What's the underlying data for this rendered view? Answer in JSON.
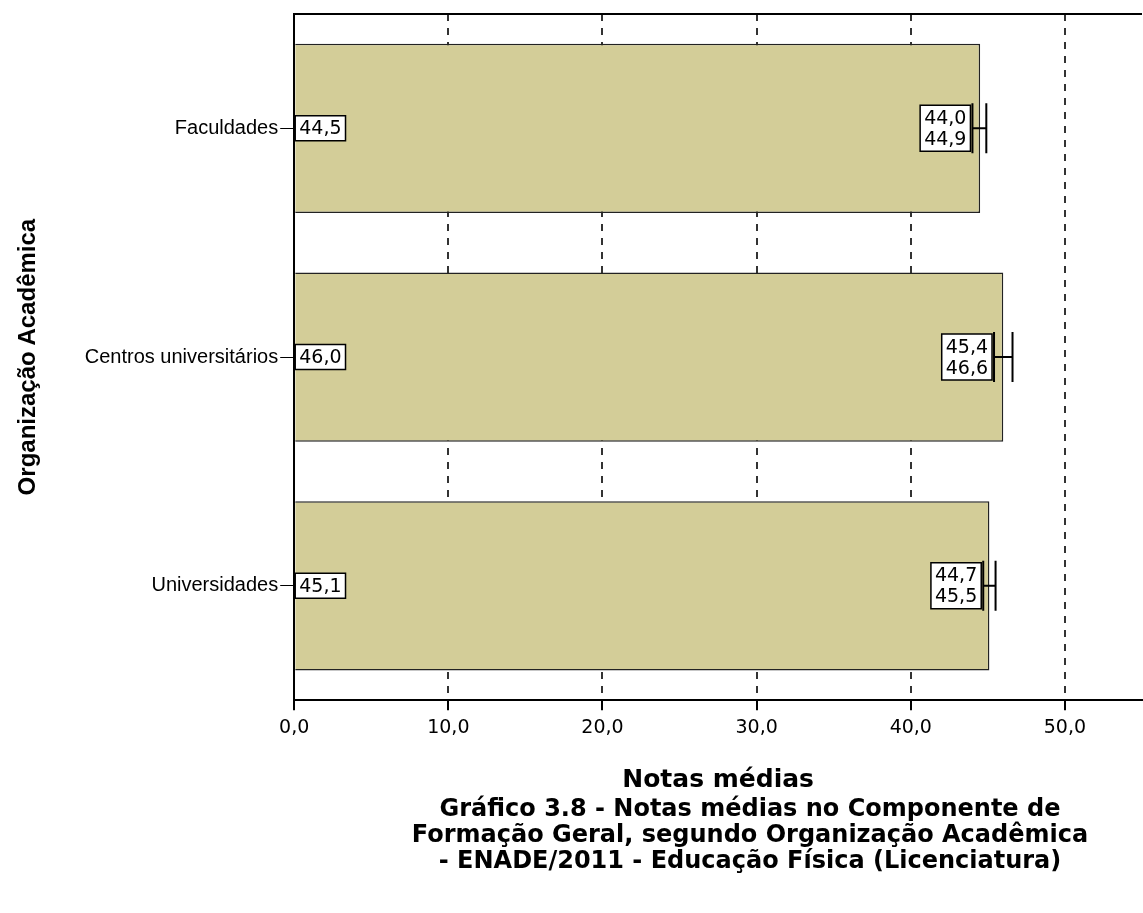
{
  "chart_data": {
    "type": "bar",
    "orientation": "horizontal",
    "title": "Gráfico 3.8 - Notas médias no Componente de Formação Geral, segundo Organização Acadêmica - ENADE/2011 - Educação Física (Licenciatura)",
    "xlabel": "Notas médias",
    "ylabel": "Organização Acadêmica",
    "categories": [
      "Faculdades",
      "Centros universitários",
      "Universidades"
    ],
    "values": [
      44.5,
      46.0,
      45.1
    ],
    "color": "#d3cd98",
    "value_labels": [
      "44,5",
      "46,0",
      "45,1"
    ],
    "errors": [
      [
        44.0,
        44.9
      ],
      [
        45.4,
        46.6
      ],
      [
        44.7,
        45.5
      ]
    ],
    "annotations": [
      {
        "text": "44,0",
        "x": 44.0,
        "y": "Faculdades"
      },
      {
        "text": "44,9",
        "x": 44.9,
        "y": "Faculdades"
      },
      {
        "text": "45,4",
        "x": 45.4,
        "y": "Centros universitários"
      },
      {
        "text": "46,6",
        "x": 46.6,
        "y": "Centros universitários"
      },
      {
        "text": "44,7",
        "x": 44.7,
        "y": "Universidades"
      },
      {
        "text": "45,5",
        "x": 45.5,
        "y": "Universidades"
      }
    ],
    "xlim": [
      0,
      55
    ],
    "xticks": [
      {
        "value": 0,
        "label": "0,0"
      },
      {
        "value": 10,
        "label": "10,0"
      },
      {
        "value": 20,
        "label": "20,0"
      },
      {
        "value": 30,
        "label": "30,0"
      },
      {
        "value": 40,
        "label": "40,0"
      },
      {
        "value": 50,
        "label": "50,0"
      }
    ],
    "grid": "x"
  }
}
